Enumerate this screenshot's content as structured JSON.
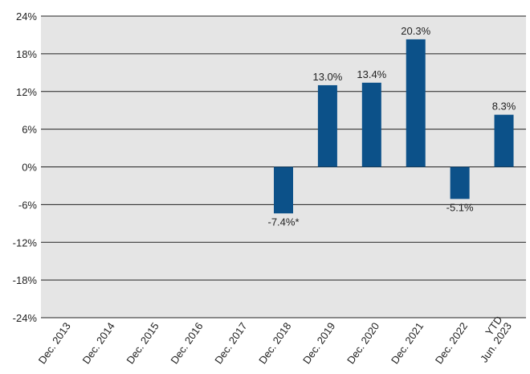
{
  "chart_data": {
    "type": "bar",
    "title": "",
    "xlabel": "",
    "ylabel": "",
    "ylim": [
      -24,
      24
    ],
    "yticks": [
      24,
      18,
      12,
      6,
      0,
      -6,
      -12,
      -18,
      -24
    ],
    "ytick_labels": [
      "24%",
      "18%",
      "12%",
      "6%",
      "0%",
      "-6%",
      "-12%",
      "-18%",
      "-24%"
    ],
    "grid": true,
    "categories": [
      [
        "Dec. 2013"
      ],
      [
        "Dec. 2014"
      ],
      [
        "Dec. 2015"
      ],
      [
        "Dec. 2016"
      ],
      [
        "Dec. 2017"
      ],
      [
        "Dec. 2018"
      ],
      [
        "Dec. 2019"
      ],
      [
        "Dec. 2020"
      ],
      [
        "Dec. 2021"
      ],
      [
        "Dec. 2022"
      ],
      [
        "YTD",
        "Jun. 2023"
      ]
    ],
    "values": [
      null,
      null,
      null,
      null,
      null,
      -7.4,
      13.0,
      13.4,
      20.3,
      -5.1,
      8.3
    ],
    "data_labels": [
      null,
      null,
      null,
      null,
      null,
      "-7.4%*",
      "13.0%",
      "13.4%",
      "20.3%",
      "-5.1%",
      "8.3%"
    ],
    "colors": {
      "bar": "#0c5189",
      "plot_bg": "#e5e5e5",
      "grid": "#222222"
    }
  }
}
